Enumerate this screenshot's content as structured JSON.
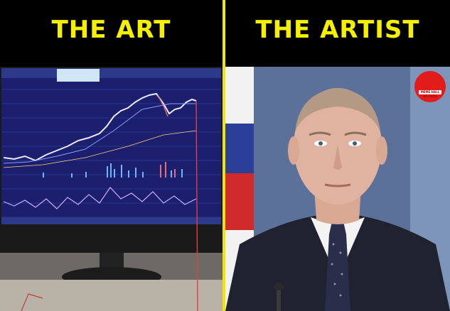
{
  "left_caption": "THE ART",
  "right_caption": "THE ARTIST",
  "left_image": {
    "subject": "monitor-showing-stock-chart"
  },
  "right_image": {
    "subject": "portrait-man-in-suit"
  },
  "badge": {
    "text": "MEME HALL OF FAME",
    "color": "#e21b1b"
  },
  "colors": {
    "caption": "#f5ef00",
    "background": "#000000",
    "divider": "#f2e600"
  }
}
